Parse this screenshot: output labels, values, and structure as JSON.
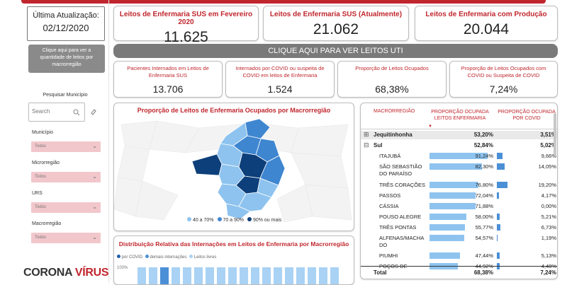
{
  "update": {
    "title": "Última Atualização:",
    "date": "02/12/2020"
  },
  "sidebar": {
    "uti_button": "Clique aqui para ver a quantidade de leitos por macrorregião",
    "search_title": "Pesquisar Município",
    "search_placeholder": "Search",
    "filters": [
      {
        "label": "Município",
        "value": "Todos"
      },
      {
        "label": "Microrregião",
        "value": "Todos"
      },
      {
        "label": "URS",
        "value": "Todos"
      },
      {
        "label": "Macrorregião",
        "value": "Todos"
      }
    ],
    "logo_a": "CORONA",
    "logo_b": "VÍRUS"
  },
  "kpis": [
    {
      "title": "Leitos de Enfermaria SUS em Fevereiro 2020",
      "value": "11.625"
    },
    {
      "title": "Leitos de Enfermaria SUS (Atualmente)",
      "value": "21.062"
    },
    {
      "title": "Leitos de Enfermaria com Produção",
      "value": "20.044"
    }
  ],
  "banner": "CLIQUE AQUI PARA VER LEITOS UTI",
  "kpis2": [
    {
      "title": "Pacientes Internados em Leitos de Enfermaria SUS",
      "value": "13.706"
    },
    {
      "title": "Internados por COVID ou suspeita de COVID em leitos de Enfermaria",
      "value": "1.524"
    },
    {
      "title": "Proporção de Leitos Ocupados",
      "value": "68,38%"
    },
    {
      "title": "Proporção de Leitos Ocupados com COVID ou Suspeita de COVID",
      "value": "7,24%"
    }
  ],
  "map": {
    "title": "Proporção de Leitos de Enfermaria Ocupados por Macrorregião",
    "legend": [
      {
        "label": "40 a 70%",
        "color": "#8ec3ef"
      },
      {
        "label": "70 a 90%",
        "color": "#3f86d0"
      },
      {
        "label": "90% ou mais",
        "color": "#0d3f7a"
      }
    ]
  },
  "dist": {
    "title": "Distribuição Relativa das Internações em Leitos de Enfermaria por Macrorregião",
    "legend": [
      "por COVID",
      "demais internações",
      "Leitos livres"
    ],
    "ytick": "100%"
  },
  "table": {
    "headers": [
      "MACRORREGIÃO",
      "PROPORÇÃO OCUPADA LEITOS ENFERMARIA",
      "PROPORÇÃO OCUPADA POR COVID"
    ],
    "rows": [
      {
        "name": "Jequitinhonha",
        "a": 53.2,
        "b": 3.51,
        "a_txt": "53,20%",
        "b_txt": "3,51%",
        "level": 0,
        "exp": "⊞",
        "sel": true
      },
      {
        "name": "Sul",
        "a": 52.84,
        "b": 5.02,
        "a_txt": "52,84%",
        "b_txt": "5,02%",
        "level": 0,
        "exp": "⊟"
      },
      {
        "name": "ITAJUBÁ",
        "a": 91.24,
        "b": 9.66,
        "a_txt": "91,24%",
        "b_txt": "9,66%",
        "level": 1
      },
      {
        "name": "SÃO SEBASTIÃO",
        "name2": "DO PARAÍSO",
        "a": 82.3,
        "b": 14.05,
        "a_txt": "82,30%",
        "b_txt": "14,05%",
        "level": 1
      },
      {
        "name": "TRÊS CORAÇÕES",
        "a": 76.8,
        "b": 19.2,
        "a_txt": "76,80%",
        "b_txt": "19,20%",
        "level": 1
      },
      {
        "name": "PASSOS",
        "a": 72.04,
        "b": 4.17,
        "a_txt": "72,04%",
        "b_txt": "4,17%",
        "level": 1
      },
      {
        "name": "CÁSSIA",
        "a": 71.88,
        "b": 0.0,
        "a_txt": "71,88%",
        "b_txt": "0,00%",
        "level": 1
      },
      {
        "name": "POUSO ALEGRE",
        "a": 58.0,
        "b": 5.21,
        "a_txt": "58,00%",
        "b_txt": "5,21%",
        "level": 1
      },
      {
        "name": "TRÊS PONTAS",
        "a": 55.77,
        "b": 6.73,
        "a_txt": "55,77%",
        "b_txt": "6,73%",
        "level": 1
      },
      {
        "name": "ALFENAS/MACHA",
        "name2": "DO",
        "a": 54.57,
        "b": 1.19,
        "a_txt": "54,57%",
        "b_txt": "1,19%",
        "level": 1
      },
      {
        "name": "PIUMHI",
        "a": 47.44,
        "b": 5.13,
        "a_txt": "47,44%",
        "b_txt": "5,13%",
        "level": 1
      },
      {
        "name": "POÇOS DE",
        "a": 44.92,
        "b": 4.48,
        "a_txt": "44,92%",
        "b_txt": "4,48%",
        "level": 1
      }
    ],
    "total": {
      "name": "Total",
      "a_txt": "68,38%",
      "b_txt": "7,24%"
    }
  }
}
